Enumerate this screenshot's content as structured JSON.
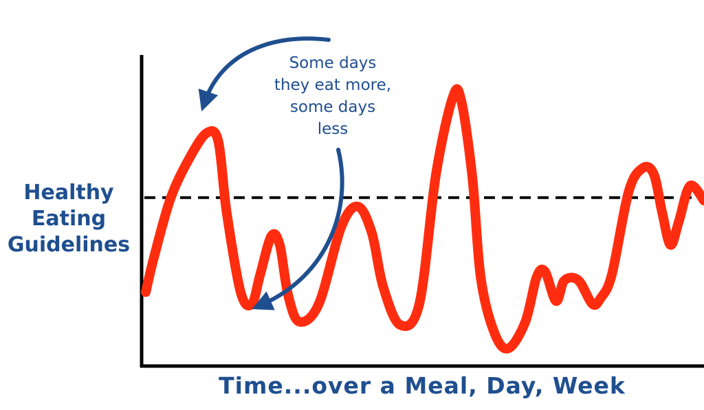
{
  "chart_data": {
    "type": "line",
    "ylabel_lines": [
      "Healthy",
      "Eating",
      "Guidelines"
    ],
    "xlabel": "Time...over a Meal, Day, Week",
    "reference_line": {
      "style": "dashed",
      "color": "#000000",
      "level": 0.54
    },
    "annotation_lines": [
      "Some days",
      "they eat more,",
      "some days",
      "less"
    ],
    "annotation_color": "#1f4f8f",
    "series": [
      {
        "color": "#ff2d0f",
        "x": [
          0,
          0.015,
          0.045,
          0.08,
          0.11,
          0.13,
          0.145,
          0.17,
          0.19,
          0.205,
          0.225,
          0.24,
          0.255,
          0.275,
          0.31,
          0.35,
          0.38,
          0.405,
          0.425,
          0.455,
          0.49,
          0.52,
          0.55,
          0.565,
          0.585,
          0.6,
          0.625,
          0.65,
          0.68,
          0.7,
          0.715,
          0.735,
          0.75,
          0.775,
          0.8,
          0.815,
          0.835,
          0.865,
          0.89,
          0.91,
          0.925,
          0.94,
          0.955,
          0.975,
          1.0
        ],
        "y": [
          0.22,
          0.34,
          0.54,
          0.68,
          0.76,
          0.73,
          0.49,
          0.22,
          0.18,
          0.28,
          0.41,
          0.38,
          0.21,
          0.12,
          0.18,
          0.44,
          0.51,
          0.42,
          0.24,
          0.11,
          0.18,
          0.62,
          0.88,
          0.87,
          0.61,
          0.27,
          0.08,
          0.03,
          0.12,
          0.27,
          0.29,
          0.19,
          0.26,
          0.26,
          0.18,
          0.2,
          0.28,
          0.56,
          0.64,
          0.62,
          0.49,
          0.38,
          0.46,
          0.58,
          0.53
        ]
      }
    ],
    "ylim": [
      0,
      1
    ],
    "xlim": [
      0,
      1
    ],
    "grid": false
  }
}
